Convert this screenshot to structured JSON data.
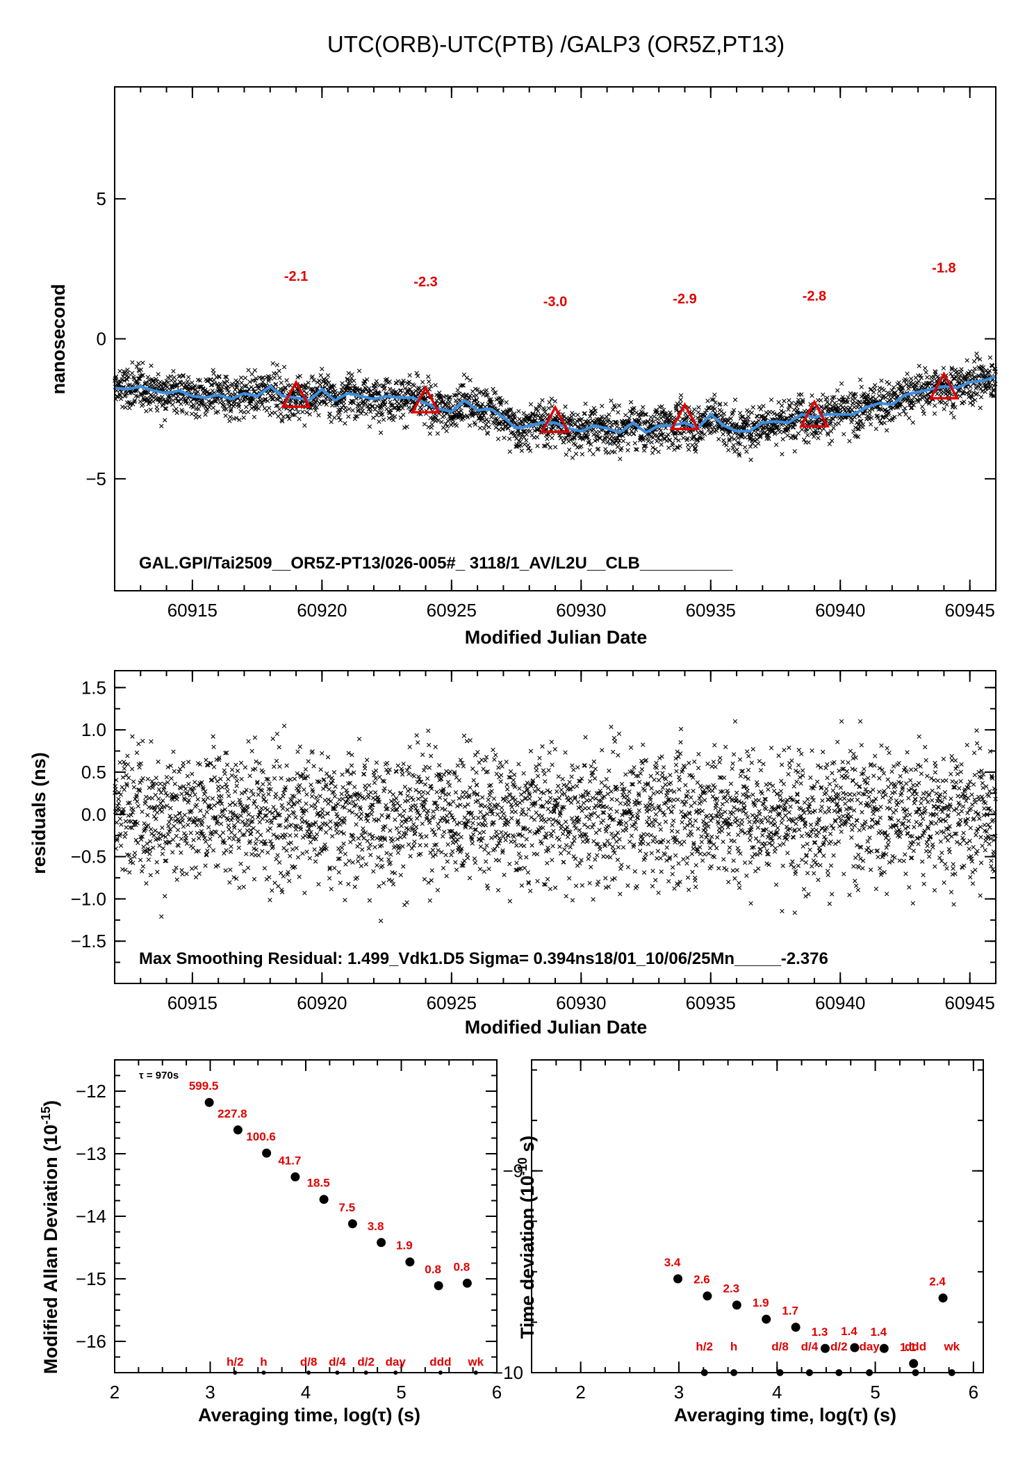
{
  "title": "UTC(ORB)-UTC(PTB)  /GALP3  (OR5Z,PT13)",
  "colors": {
    "smooth": "#3b8fe0",
    "annotation": "#e00000",
    "points": "#000000"
  },
  "chart_data": [
    {
      "type": "scatter",
      "name": "main",
      "ylabel": "nanosecond",
      "xlabel": "Modified Julian Date",
      "xlim": [
        60912,
        60946
      ],
      "ylim": [
        -9,
        9
      ],
      "xticks": [
        60915,
        60920,
        60925,
        60930,
        60935,
        60940,
        60945
      ],
      "yticks": [
        5,
        0,
        -5
      ],
      "ytick_labels": [
        "5",
        "0",
        "−5"
      ],
      "footer": "GAL.GPI/Tai2509__OR5Z-PT13/026-005#_  3118/1_AV/L2U__CLB__________",
      "trend": [
        [
          60912,
          -1.7
        ],
        [
          60914,
          -1.9
        ],
        [
          60916,
          -2.1
        ],
        [
          60918,
          -2.0
        ],
        [
          60920,
          -2.1
        ],
        [
          60922,
          -2.1
        ],
        [
          60924,
          -2.3
        ],
        [
          60926,
          -2.6
        ],
        [
          60928,
          -3.0
        ],
        [
          60930,
          -3.2
        ],
        [
          60932,
          -3.1
        ],
        [
          60934,
          -3.0
        ],
        [
          60936,
          -3.1
        ],
        [
          60938,
          -2.9
        ],
        [
          60940,
          -2.6
        ],
        [
          60942,
          -2.3
        ],
        [
          60944,
          -1.8
        ],
        [
          60946,
          -1.4
        ]
      ],
      "smooth": [
        [
          60912,
          -1.75
        ],
        [
          60912.5,
          -1.8
        ],
        [
          60913,
          -1.7
        ],
        [
          60913.5,
          -1.85
        ],
        [
          60914,
          -1.95
        ],
        [
          60914.5,
          -1.85
        ],
        [
          60915,
          -2.05
        ],
        [
          60915.5,
          -2.1
        ],
        [
          60916,
          -2.0
        ],
        [
          60916.5,
          -2.15
        ],
        [
          60917,
          -1.95
        ],
        [
          60917.5,
          -2.05
        ],
        [
          60918,
          -1.7
        ],
        [
          60918.5,
          -2.05
        ],
        [
          60919,
          -2.1
        ],
        [
          60919.5,
          -2.2
        ],
        [
          60920,
          -1.8
        ],
        [
          60920.5,
          -2.2
        ],
        [
          60921,
          -1.95
        ],
        [
          60921.5,
          -2.05
        ],
        [
          60922,
          -2.15
        ],
        [
          60922.5,
          -2.05
        ],
        [
          60923,
          -2.1
        ],
        [
          60923.5,
          -2.1
        ],
        [
          60924,
          -2.3
        ],
        [
          60924.5,
          -2.5
        ],
        [
          60925,
          -2.6
        ],
        [
          60925.5,
          -2.2
        ],
        [
          60926,
          -2.55
        ],
        [
          60926.5,
          -2.5
        ],
        [
          60927,
          -2.8
        ],
        [
          60927.5,
          -3.2
        ],
        [
          60928,
          -3.1
        ],
        [
          60928.5,
          -3.0
        ],
        [
          60929,
          -3.0
        ],
        [
          60929.5,
          -3.2
        ],
        [
          60930,
          -3.3
        ],
        [
          60930.5,
          -3.1
        ],
        [
          60931,
          -3.2
        ],
        [
          60931.5,
          -3.35
        ],
        [
          60932,
          -3.0
        ],
        [
          60932.5,
          -3.35
        ],
        [
          60933,
          -3.1
        ],
        [
          60933.5,
          -3.1
        ],
        [
          60934,
          -3.0
        ],
        [
          60934.5,
          -3.2
        ],
        [
          60935,
          -2.7
        ],
        [
          60935.5,
          -3.1
        ],
        [
          60936,
          -3.3
        ],
        [
          60936.5,
          -3.3
        ],
        [
          60937,
          -3.0
        ],
        [
          60937.5,
          -2.95
        ],
        [
          60938,
          -3.0
        ],
        [
          60938.5,
          -2.7
        ],
        [
          60939,
          -2.8
        ],
        [
          60939.5,
          -2.7
        ],
        [
          60940,
          -2.7
        ],
        [
          60940.5,
          -2.7
        ],
        [
          60941,
          -2.45
        ],
        [
          60941.5,
          -2.3
        ],
        [
          60942,
          -2.35
        ],
        [
          60942.5,
          -2.0
        ],
        [
          60943,
          -1.9
        ],
        [
          60943.5,
          -1.8
        ],
        [
          60944,
          -1.7
        ],
        [
          60944.5,
          -1.75
        ],
        [
          60945,
          -1.55
        ],
        [
          60945.5,
          -1.5
        ],
        [
          60946,
          -1.35
        ]
      ],
      "triangles": [
        {
          "x": 60919,
          "y": -2.1,
          "label": "-2.1"
        },
        {
          "x": 60924,
          "y": -2.3,
          "label": "-2.3"
        },
        {
          "x": 60929,
          "y": -3.0,
          "label": "-3.0"
        },
        {
          "x": 60934,
          "y": -2.9,
          "label": "-2.9"
        },
        {
          "x": 60939,
          "y": -2.8,
          "label": "-2.8"
        },
        {
          "x": 60944,
          "y": -1.8,
          "label": "-1.8"
        }
      ]
    },
    {
      "type": "scatter",
      "name": "residuals",
      "ylabel": "residuals (ns)",
      "xlabel": "Modified Julian Date",
      "xlim": [
        60912,
        60946
      ],
      "ylim": [
        -2.0,
        1.7
      ],
      "xticks": [
        60915,
        60920,
        60925,
        60930,
        60935,
        60940,
        60945
      ],
      "yticks": [
        1.5,
        1.0,
        0.5,
        0.0,
        -0.5,
        -1.0,
        -1.5
      ],
      "ytick_labels": [
        "1.5",
        "1.0",
        "0.5",
        "0.0",
        "−0.5",
        "−1.0",
        "−1.5"
      ],
      "sigma": 0.394,
      "footer": "Max Smoothing Residual: 1.499_Vdk1.D5  Sigma= 0.394ns18/01_10/06/25Mn_____-2.376"
    },
    {
      "type": "scatter",
      "name": "mdev",
      "ylabel": "Modified Allan Deviation (10",
      "ylabel_exp": "-15",
      "ylabel_end": ")",
      "xlabel": "Averaging time, log(τ) (s)",
      "xlim": [
        2,
        6
      ],
      "ylim": [
        -16.5,
        -11.5
      ],
      "xticks": [
        2,
        3,
        4,
        5,
        6
      ],
      "yticks": [
        -12,
        -13,
        -14,
        -15,
        -16
      ],
      "ytick_labels": [
        "−12",
        "−13",
        "−14",
        "−15",
        "−16"
      ],
      "tau_note": "τ = 970s",
      "points": [
        {
          "x": 2.99,
          "y": -12.18,
          "label": "599.5"
        },
        {
          "x": 3.29,
          "y": -12.62,
          "label": "227.8"
        },
        {
          "x": 3.59,
          "y": -12.99,
          "label": "100.6"
        },
        {
          "x": 3.89,
          "y": -13.37,
          "label": "41.7"
        },
        {
          "x": 4.19,
          "y": -13.73,
          "label": "18.5"
        },
        {
          "x": 4.49,
          "y": -14.12,
          "label": "7.5"
        },
        {
          "x": 4.79,
          "y": -14.42,
          "label": "3.8"
        },
        {
          "x": 5.09,
          "y": -14.73,
          "label": "1.9"
        },
        {
          "x": 5.39,
          "y": -15.11,
          "label": "0.8"
        },
        {
          "x": 5.69,
          "y": -15.07,
          "label": "0.8"
        }
      ],
      "markers": [
        {
          "x": 3.26,
          "label": "h/2"
        },
        {
          "x": 3.56,
          "label": "h"
        },
        {
          "x": 4.03,
          "label": "d/8"
        },
        {
          "x": 4.33,
          "label": "d/4"
        },
        {
          "x": 4.63,
          "label": "d/2"
        },
        {
          "x": 4.94,
          "label": "day"
        },
        {
          "x": 5.41,
          "label": "ddd"
        },
        {
          "x": 5.78,
          "label": "wk"
        }
      ]
    },
    {
      "type": "scatter",
      "name": "tdev",
      "ylabel": "Time deviation (10",
      "ylabel_exp": "-10",
      "ylabel_end": " s)",
      "xlabel": "Averaging time, log(τ) (s)",
      "xlim": [
        1.5,
        6.1
      ],
      "ylim": [
        -10,
        -8.45
      ],
      "xticks": [
        2,
        3,
        4,
        5,
        6
      ],
      "yticks": [
        -9,
        -10
      ],
      "ytick_labels": [
        "−9",
        "−10"
      ],
      "points": [
        {
          "x": 2.99,
          "y": -9.535,
          "label": "3.4"
        },
        {
          "x": 3.29,
          "y": -9.62,
          "label": "2.6"
        },
        {
          "x": 3.59,
          "y": -9.665,
          "label": "2.3"
        },
        {
          "x": 3.89,
          "y": -9.735,
          "label": "1.9"
        },
        {
          "x": 4.19,
          "y": -9.775,
          "label": "1.7"
        },
        {
          "x": 4.49,
          "y": -9.88,
          "label": "1.3"
        },
        {
          "x": 4.79,
          "y": -9.876,
          "label": "1.4"
        },
        {
          "x": 5.09,
          "y": -9.88,
          "label": "1.4"
        },
        {
          "x": 5.39,
          "y": -9.955,
          "label": "1.1"
        },
        {
          "x": 5.69,
          "y": -9.63,
          "label": "2.4"
        }
      ],
      "markers": [
        {
          "x": 3.26,
          "label": "h/2"
        },
        {
          "x": 3.56,
          "label": "h"
        },
        {
          "x": 4.03,
          "label": "d/8"
        },
        {
          "x": 4.33,
          "label": "d/4"
        },
        {
          "x": 4.63,
          "label": "d/2"
        },
        {
          "x": 4.94,
          "label": "day"
        },
        {
          "x": 5.41,
          "label": "ddd"
        },
        {
          "x": 5.78,
          "label": "wk"
        }
      ]
    }
  ]
}
